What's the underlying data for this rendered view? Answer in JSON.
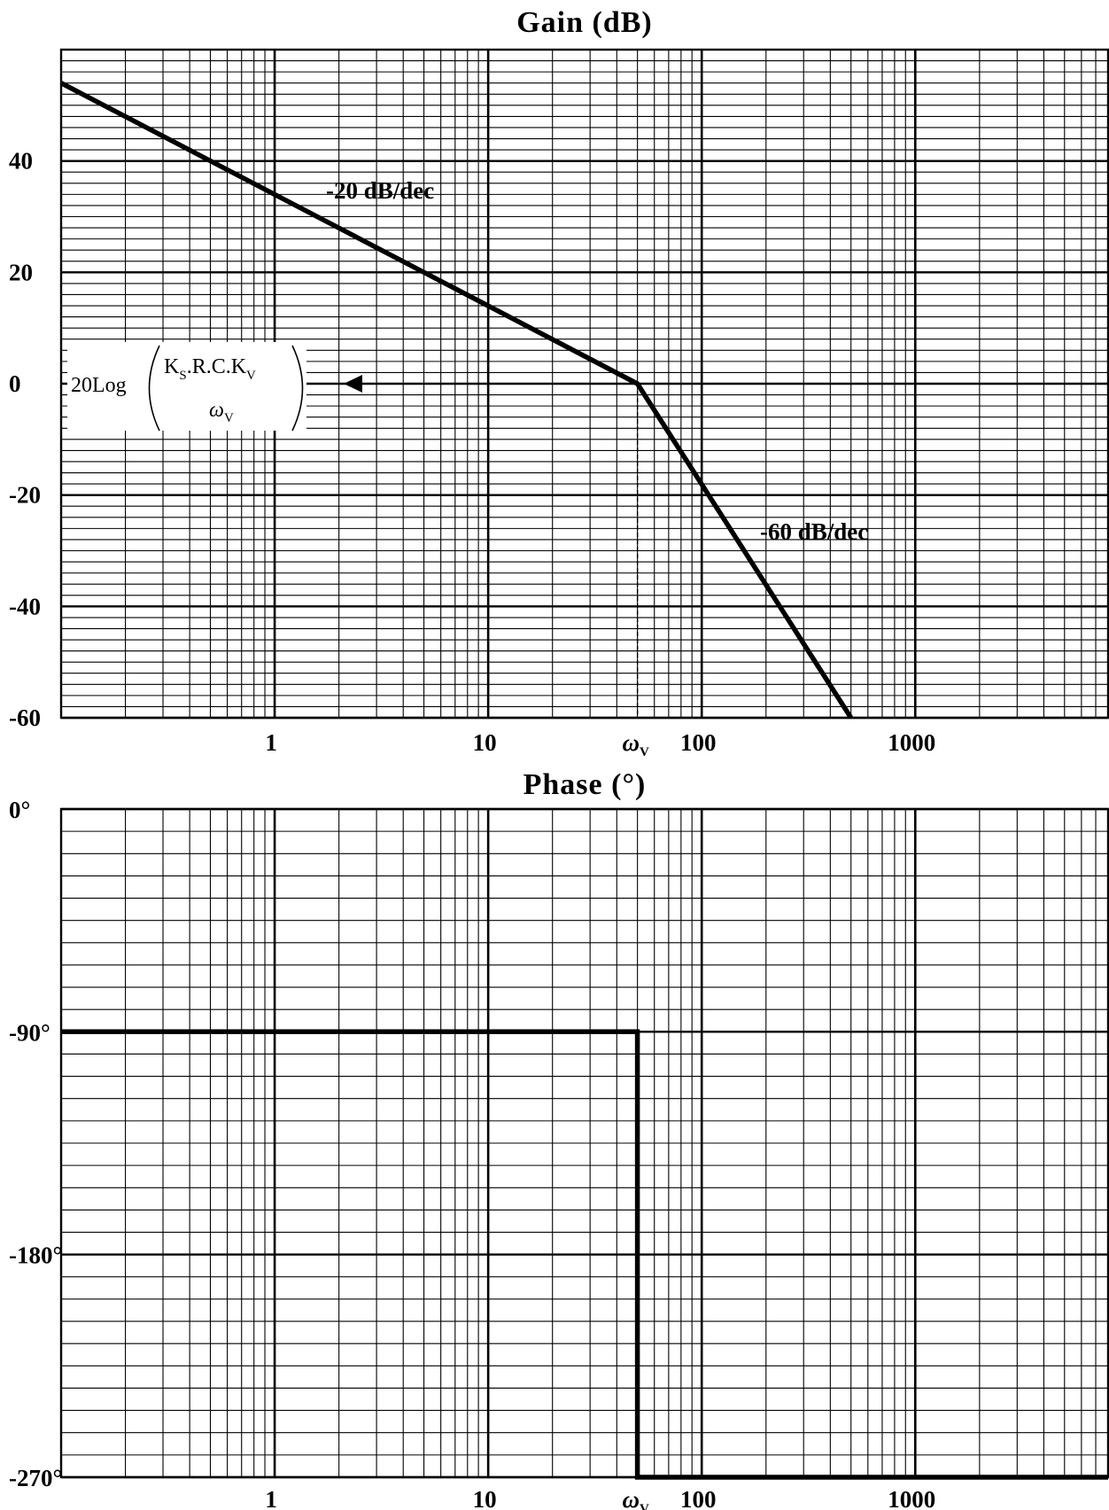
{
  "chart_data": [
    {
      "type": "line",
      "title": "Gain (dB)",
      "x_scale": "log",
      "xlim": [
        0.1,
        8000
      ],
      "ylim": [
        -60,
        60
      ],
      "x_ticks": [
        {
          "value": 1,
          "label": "1"
        },
        {
          "value": 10,
          "label": "10"
        },
        {
          "value": 100,
          "label": "100"
        },
        {
          "value": 1000,
          "label": "1000"
        }
      ],
      "y_ticks": [
        {
          "value": 40,
          "label": "40"
        },
        {
          "value": 20,
          "label": "20"
        },
        {
          "value": 0,
          "label": "0"
        },
        {
          "value": -20,
          "label": "-20"
        },
        {
          "value": -40,
          "label": "-40"
        },
        {
          "value": -60,
          "label": "-60"
        }
      ],
      "grid": true,
      "series": [
        {
          "values": [
            {
              "x": 0.1,
              "y": 54
            },
            {
              "x": 50,
              "y": 0
            },
            {
              "x": 500,
              "y": -60
            }
          ]
        }
      ],
      "marker": {
        "x": 50,
        "label": "ω",
        "label_sub": "V"
      },
      "annotations": {
        "slope1": "-20 dB/dec",
        "slope2": "-60 dB/dec",
        "formula_prefix": "20Log",
        "formula_num": "K",
        "formula_num_sub1": "S",
        "formula_num_mid": ".R.C.K",
        "formula_num_sub2": "V",
        "formula_den": "ω",
        "formula_den_sub": "V"
      }
    },
    {
      "type": "line",
      "title": "Phase (°)",
      "x_scale": "log",
      "xlim": [
        0.1,
        8000
      ],
      "ylim": [
        -270,
        0
      ],
      "x_ticks": [
        {
          "value": 1,
          "label": "1"
        },
        {
          "value": 10,
          "label": "10"
        },
        {
          "value": 100,
          "label": "100"
        },
        {
          "value": 1000,
          "label": "1000"
        }
      ],
      "y_ticks": [
        {
          "value": 0,
          "label": "0°"
        },
        {
          "value": -90,
          "label": "-90°"
        },
        {
          "value": -180,
          "label": "-180°"
        },
        {
          "value": -270,
          "label": "-270°"
        }
      ],
      "grid": true,
      "series": [
        {
          "values": [
            {
              "x": 0.1,
              "y": -90
            },
            {
              "x": 50,
              "y": -90
            },
            {
              "x": 50,
              "y": -270
            },
            {
              "x": 8000,
              "y": -270
            }
          ]
        }
      ],
      "marker": {
        "x": 50,
        "label": "ω",
        "label_sub": "V"
      }
    }
  ]
}
